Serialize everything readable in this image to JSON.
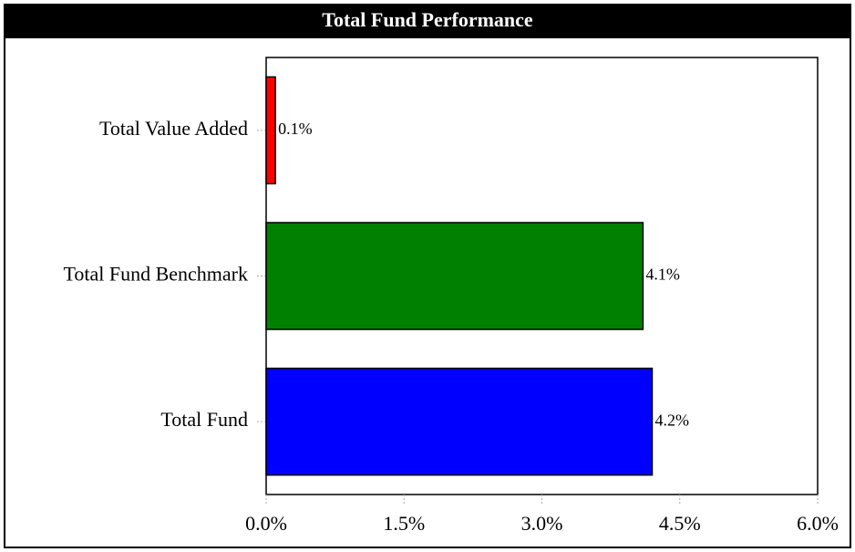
{
  "chart_data": {
    "type": "barh",
    "title": "Total Fund Performance",
    "categories": [
      "Total Value Added",
      "Total Fund Benchmark",
      "Total Fund"
    ],
    "values": [
      0.1,
      4.1,
      4.2
    ],
    "value_labels": [
      "0.1%",
      "4.1%",
      "4.2%"
    ],
    "colors": [
      "#ff0000",
      "#008000",
      "#0000ff"
    ],
    "xlim": [
      0,
      6
    ],
    "xticks": [
      {
        "value": 0,
        "label": "0.0%"
      },
      {
        "value": 1.5,
        "label": "1.5%"
      },
      {
        "value": 3,
        "label": "3.0%"
      },
      {
        "value": 4.5,
        "label": "4.5%"
      },
      {
        "value": 6,
        "label": "6.0%"
      }
    ],
    "grid": false
  }
}
